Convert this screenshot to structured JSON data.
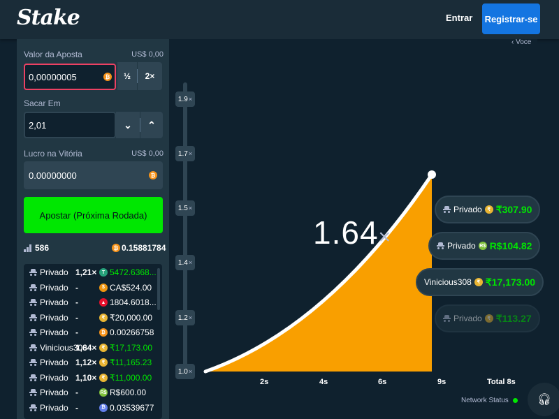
{
  "header": {
    "logo": "Stake",
    "login": "Entrar",
    "register": "Registrar-se"
  },
  "bet": {
    "label": "Valor da Aposta",
    "usd": "US$ 0,00",
    "value": "0,00000005",
    "half": "½",
    "double": "2×"
  },
  "cashout": {
    "label": "Sacar Em",
    "value": "2,01",
    "down": "⌄",
    "up": "⌃"
  },
  "profit": {
    "label": "Lucro na Vitória",
    "usd": "US$ 0,00",
    "value": "0.00000000"
  },
  "bet_button": "Apostar (Próxima Rodada)",
  "stats": {
    "players": "586",
    "total": "0.15881784"
  },
  "players": [
    {
      "name": "Privado",
      "mult": "1,21×",
      "coin": "T",
      "coin_color": "#26a17b",
      "amount": "5472.6368...",
      "win": true
    },
    {
      "name": "Privado",
      "mult": "-",
      "coin": "$",
      "coin_color": "#f0960f",
      "amount": "CA$524.00",
      "win": false
    },
    {
      "name": "Privado",
      "mult": "-",
      "coin": "▲",
      "coin_color": "#e8112d",
      "amount": "1804.6018...",
      "win": false
    },
    {
      "name": "Privado",
      "mult": "-",
      "coin": "₹",
      "coin_color": "#e9b533",
      "amount": "₹20,000.00",
      "win": false
    },
    {
      "name": "Privado",
      "mult": "-",
      "coin": "₿",
      "coin_color": "#f7931a",
      "amount": "0.00266758",
      "win": false
    },
    {
      "name": "Vinicious308",
      "mult": "1,64×",
      "coin": "₹",
      "coin_color": "#e9b533",
      "amount": "₹17,173.00",
      "win": true
    },
    {
      "name": "Privado",
      "mult": "1,12×",
      "coin": "₹",
      "coin_color": "#e9b533",
      "amount": "₹11,165.23",
      "win": true
    },
    {
      "name": "Privado",
      "mult": "1,10×",
      "coin": "₹",
      "coin_color": "#e9b533",
      "amount": "₹11,000.00",
      "win": true
    },
    {
      "name": "Privado",
      "mult": "-",
      "coin": "R$",
      "coin_color": "#7fc13a",
      "amount": "R$600.00",
      "win": false
    },
    {
      "name": "Privado",
      "mult": "-",
      "coin": "₿",
      "coin_color": "#627eea",
      "amount": "0.03539677",
      "win": false
    }
  ],
  "game": {
    "voce_label": "‹ Voce",
    "current_multiplier": "1.64",
    "mult_suffix": "×",
    "y_ticks": [
      "1.9",
      "1.7",
      "1.5",
      "1.4",
      "1.2",
      "1.0"
    ],
    "y_suffix": "×",
    "x_ticks": [
      "2s",
      "4s",
      "6s",
      "9s"
    ],
    "total_label": "Total 8s",
    "progress": 0.8
  },
  "wins": [
    {
      "name": "Privado",
      "coin": "₹",
      "coin_color": "#e9b533",
      "amount": "₹307.90"
    },
    {
      "name": "Privado",
      "coin": "R$",
      "coin_color": "#7fc13a",
      "amount": "R$104.82"
    },
    {
      "name": "Vinicious308",
      "coin": "₹",
      "coin_color": "#e9b533",
      "amount": "₹17,173.00"
    },
    {
      "name": "Privado",
      "coin": "₹",
      "coin_color": "#e9b533",
      "amount": "₹113.27"
    }
  ],
  "network": "Network Status",
  "colors": {
    "accent": "#00e701",
    "primary": "#1475e1",
    "curve_fill": "#f99f00"
  }
}
